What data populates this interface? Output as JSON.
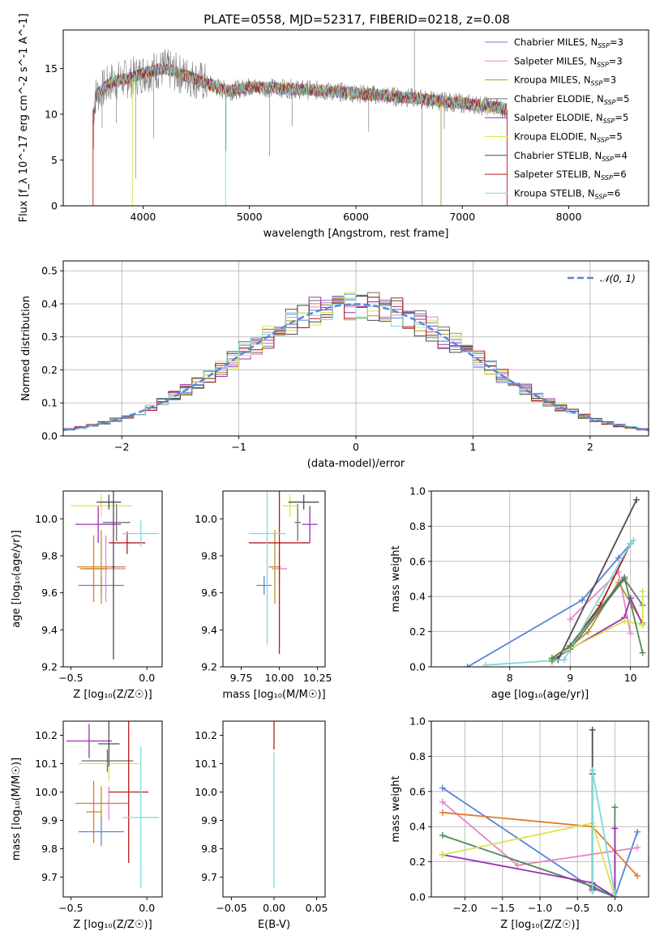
{
  "figure_title": "PLATE=0558, MJD=52317, FIBERID=0218, z=0.08",
  "colors": {
    "Chabrier MILES": "#5b84d6",
    "Salpeter MILES": "#e487c2",
    "Kroupa MILES": "#b8952c",
    "Chabrier ELODIE": "#6e6e6e",
    "Salpeter ELODIE": "#9b2fb3",
    "Kroupa ELODIE": "#d9e34e",
    "Chabrier STELIB": "#4d4d4d",
    "Salpeter STELIB": "#b51c1c",
    "Kroupa STELIB": "#7fd8d8",
    "panel_extra": [
      "#e07b2a",
      "#4f8a55"
    ]
  },
  "chart_data": [
    {
      "id": "spectrum",
      "type": "line",
      "xlabel": "wavelength [Angstrom, rest frame]",
      "ylabel": "Flux [f_λ 10^-17 erg cm^-2 s^-1 A^-1]",
      "xlim": [
        3250,
        8750
      ],
      "ylim": [
        0,
        19.2
      ],
      "xticks": [
        "4000",
        "5000",
        "6000",
        "7000",
        "8000"
      ],
      "yticks": [
        "0",
        "5",
        "10",
        "15"
      ],
      "grid": false,
      "legend_position": "top-right",
      "legend": [
        {
          "base": "Chabrier MILES, N",
          "suffix": "=3"
        },
        {
          "base": "Salpeter MILES, N",
          "suffix": "=3"
        },
        {
          "base": "Kroupa MILES, N",
          "suffix": "=3"
        },
        {
          "base": "Chabrier ELODIE, N",
          "suffix": "=5"
        },
        {
          "base": "Salpeter ELODIE, N",
          "suffix": "=5"
        },
        {
          "base": "Kroupa ELODIE, N",
          "suffix": "=5"
        },
        {
          "base": "Chabrier STELIB, N",
          "suffix": "=4"
        },
        {
          "base": "Salpeter STELIB, N",
          "suffix": "=6"
        },
        {
          "base": "Kroupa STELIB, N",
          "suffix": "=6"
        }
      ],
      "legend_sub": "SSP",
      "data_trend": {
        "x": [
          3550,
          3700,
          3900,
          4000,
          4200,
          4500,
          4800,
          5000,
          5500,
          6000,
          6500,
          7000,
          7300,
          7420
        ],
        "y": [
          12.0,
          13.5,
          14.0,
          14.5,
          15.0,
          13.8,
          12.5,
          13.0,
          12.7,
          12.3,
          11.8,
          11.2,
          10.8,
          10.5
        ]
      }
    },
    {
      "id": "residual_histogram",
      "type": "line",
      "xlabel": "(data-model)/error",
      "ylabel": "Normed distribution",
      "xlim": [
        -2.5,
        2.5
      ],
      "ylim": [
        0,
        0.53
      ],
      "xticks": [
        "−2",
        "−1",
        "0",
        "1",
        "2"
      ],
      "yticks": [
        "0.0",
        "0.1",
        "0.2",
        "0.3",
        "0.4",
        "0.5"
      ],
      "grid": true,
      "legend": [
        "𝒩(0, 1)"
      ],
      "reference_curve": "normal pdf, mean 0, sigma 1",
      "bin_width": 0.1
    },
    {
      "id": "age_vs_Z",
      "type": "scatter",
      "xlabel": "Z [log₁₀(Z/Z☉)]",
      "ylabel": "age  [log₁₀(age/yr)]",
      "xlim": [
        -0.55,
        0.1
      ],
      "ylim": [
        9.2,
        10.15
      ],
      "xticks": [
        "−0.5",
        "0.0"
      ],
      "yticks": [
        "9.2",
        "9.4",
        "9.6",
        "9.8",
        "10.0"
      ],
      "points": [
        {
          "c": "Chabrier MILES",
          "x": -0.3,
          "xe": 0.15,
          "y": 9.64,
          "ye": 0.05
        },
        {
          "c": "Salpeter MILES",
          "x": -0.27,
          "xe": 0.13,
          "y": 9.73,
          "ye": 0.18
        },
        {
          "c": "Kroupa MILES",
          "x": -0.3,
          "xe": 0.16,
          "y": 9.74,
          "ye": 0.2
        },
        {
          "c": "Chabrier ELODIE",
          "x": -0.2,
          "xe": 0.09,
          "y": 9.98,
          "ye": 0.1
        },
        {
          "c": "Salpeter ELODIE",
          "x": -0.32,
          "xe": 0.15,
          "y": 9.97,
          "ye": 0.1
        },
        {
          "c": "Kroupa ELODIE",
          "x": -0.3,
          "xe": 0.2,
          "y": 10.07,
          "ye": 0.06
        },
        {
          "c": "Chabrier STELIB",
          "x": -0.25,
          "xe": 0.08,
          "y": 10.09,
          "ye": 0.04
        },
        {
          "c": "Salpeter STELIB",
          "x": -0.13,
          "xe": 0.12,
          "y": 9.87,
          "ye": 0.06
        },
        {
          "c": "Kroupa STELIB",
          "x": -0.04,
          "xe": 0.12,
          "y": 9.92,
          "ye": 0.07
        },
        {
          "c": "Chabrier STELIB",
          "x": -0.22,
          "xe": 0.01,
          "y": 9.74,
          "ye": 0.5
        },
        {
          "c": "panel_extra.0",
          "x": -0.35,
          "xe": 0.09,
          "y": 9.73,
          "ye": 0.18
        }
      ]
    },
    {
      "id": "age_vs_mass",
      "type": "scatter",
      "xlabel": "mass [log₁₀(M/M☉)]",
      "ylabel": "",
      "xlim": [
        9.63,
        10.3
      ],
      "ylim": [
        9.2,
        10.15
      ],
      "xticks": [
        "9.75",
        "10.00",
        "10.25"
      ],
      "yticks": [
        "9.2",
        "9.4",
        "9.6",
        "9.8",
        "10.0"
      ],
      "points": [
        {
          "c": "Chabrier MILES",
          "x": 9.9,
          "xe": 0.05,
          "y": 9.64,
          "ye": 0.05
        },
        {
          "c": "Salpeter MILES",
          "x": 10.0,
          "xe": 0.05,
          "y": 9.73,
          "ye": 0.08
        },
        {
          "c": "Kroupa MILES",
          "x": 9.97,
          "xe": 0.04,
          "y": 9.74,
          "ye": 0.2
        },
        {
          "c": "Chabrier ELODIE",
          "x": 10.12,
          "xe": 0.02,
          "y": 9.98,
          "ye": 0.1
        },
        {
          "c": "Salpeter ELODIE",
          "x": 10.2,
          "xe": 0.05,
          "y": 9.97,
          "ye": 0.1
        },
        {
          "c": "Kroupa ELODIE",
          "x": 10.07,
          "xe": 0.05,
          "y": 10.07,
          "ye": 0.06
        },
        {
          "c": "Chabrier STELIB",
          "x": 10.16,
          "xe": 0.1,
          "y": 10.09,
          "ye": 0.04
        },
        {
          "c": "Salpeter STELIB",
          "x": 10.0,
          "xe": 0.2,
          "y": 9.87,
          "ye": 0.6
        },
        {
          "c": "Kroupa STELIB",
          "x": 9.92,
          "xe": 0.12,
          "y": 9.92,
          "ye": 0.6
        }
      ]
    },
    {
      "id": "massweight_vs_age",
      "type": "line",
      "xlabel": "age  [log₁₀(age/yr)]",
      "ylabel": "mass weight",
      "xlim": [
        6.7,
        10.3
      ],
      "ylim": [
        0,
        1
      ],
      "xticks": [
        "8",
        "9",
        "10"
      ],
      "yticks": [
        "0.0",
        "0.2",
        "0.4",
        "0.6",
        "0.8",
        "1.0"
      ],
      "grid": true,
      "series": [
        {
          "c": "Chabrier MILES",
          "x": [
            7.3,
            9.2,
            9.8,
            10.0
          ],
          "y": [
            0.0,
            0.38,
            0.62,
            0.7
          ]
        },
        {
          "c": "Salpeter MILES",
          "x": [
            9.0,
            9.8,
            10.0
          ],
          "y": [
            0.27,
            0.54,
            0.19
          ]
        },
        {
          "c": "Kroupa MILES",
          "x": [
            8.7,
            9.3,
            9.8,
            10.2
          ],
          "y": [
            0.03,
            0.2,
            0.48,
            0.25
          ]
        },
        {
          "c": "Chabrier ELODIE",
          "x": [
            8.7,
            9.0,
            9.9,
            10.2
          ],
          "y": [
            0.04,
            0.1,
            0.5,
            0.35
          ]
        },
        {
          "c": "Salpeter ELODIE",
          "x": [
            8.8,
            9.9,
            10.0,
            10.2
          ],
          "y": [
            0.06,
            0.28,
            0.39,
            0.24
          ]
        },
        {
          "c": "Kroupa ELODIE",
          "x": [
            8.7,
            9.9,
            10.2,
            10.2
          ],
          "y": [
            0.05,
            0.26,
            0.24,
            0.43
          ]
        },
        {
          "c": "Chabrier STELIB",
          "x": [
            8.8,
            10.1
          ],
          "y": [
            0.04,
            0.95
          ]
        },
        {
          "c": "Salpeter STELIB",
          "x": [
            9.0,
            9.5,
            10.0
          ],
          "y": [
            0.12,
            0.35,
            0.7
          ]
        },
        {
          "c": "Kroupa STELIB",
          "x": [
            7.6,
            8.9,
            10.0,
            10.05
          ],
          "y": [
            0.01,
            0.04,
            0.7,
            0.72
          ]
        },
        {
          "c": "panel_extra.1",
          "x": [
            8.7,
            9.0,
            9.9,
            10.2
          ],
          "y": [
            0.05,
            0.12,
            0.51,
            0.08
          ]
        }
      ]
    },
    {
      "id": "mass_vs_Z",
      "type": "scatter",
      "xlabel": "Z [log₁₀(Z/Z☉)]",
      "ylabel": "mass [log₁₀(M/M☉)]",
      "xlim": [
        -0.55,
        0.1
      ],
      "ylim": [
        9.63,
        10.25
      ],
      "xticks": [
        "−0.5",
        "0.0"
      ],
      "yticks": [
        "9.7",
        "9.8",
        "9.9",
        "10.0",
        "10.1",
        "10.2"
      ],
      "points": [
        {
          "c": "Chabrier MILES",
          "x": -0.3,
          "xe": 0.15,
          "y": 9.86,
          "ye": 0.05
        },
        {
          "c": "Salpeter MILES",
          "x": -0.25,
          "xe": 0.13,
          "y": 9.96,
          "ye": 0.06
        },
        {
          "c": "Kroupa MILES",
          "x": -0.3,
          "xe": 0.17,
          "y": 9.96,
          "ye": 0.06
        },
        {
          "c": "Chabrier ELODIE",
          "x": -0.26,
          "xe": 0.17,
          "y": 10.11,
          "ye": 0.04
        },
        {
          "c": "Salpeter ELODIE",
          "x": -0.38,
          "xe": 0.15,
          "y": 10.18,
          "ye": 0.06
        },
        {
          "c": "Kroupa ELODIE",
          "x": -0.25,
          "xe": 0.2,
          "y": 10.1,
          "ye": 0.06
        },
        {
          "c": "Chabrier STELIB",
          "x": -0.25,
          "xe": 0.07,
          "y": 10.17,
          "ye": 0.08
        },
        {
          "c": "Salpeter STELIB",
          "x": -0.12,
          "xe": 0.13,
          "y": 10.0,
          "ye": 0.25
        },
        {
          "c": "Kroupa STELIB",
          "x": -0.04,
          "xe": 0.12,
          "y": 9.91,
          "ye": 0.25
        },
        {
          "c": "panel_extra.0",
          "x": -0.35,
          "xe": 0.05,
          "y": 9.93,
          "ye": 0.11
        }
      ]
    },
    {
      "id": "mass_vs_ebv",
      "type": "scatter",
      "xlabel": "E(B-V)",
      "ylabel": "",
      "xlim": [
        -0.06,
        0.06
      ],
      "ylim": [
        9.63,
        10.25
      ],
      "xticks": [
        "−0.05",
        "0.00",
        "0.05"
      ],
      "yticks": [
        "9.7",
        "9.8",
        "9.9",
        "10.0",
        "10.1",
        "10.2"
      ],
      "points": [
        {
          "c": "Salpeter STELIB",
          "x": 0.0,
          "xe": 0.0,
          "y": 10.2,
          "ye": 0.05
        },
        {
          "c": "Kroupa STELIB",
          "x": 0.0,
          "xe": 0.0,
          "y": 9.9,
          "ye": 0.24
        }
      ]
    },
    {
      "id": "massweight_vs_Z",
      "type": "line",
      "xlabel": "Z [log₁₀(Z/Z☉)]",
      "ylabel": "mass weight",
      "xlim": [
        -2.45,
        0.45
      ],
      "ylim": [
        0,
        1
      ],
      "xticks": [
        "−2.0",
        "−1.5",
        "−1.0",
        "−0.5",
        "0.0"
      ],
      "yticks": [
        "0.0",
        "0.2",
        "0.4",
        "0.6",
        "0.8",
        "1.0"
      ],
      "grid": true,
      "series": [
        {
          "c": "Chabrier MILES",
          "x": [
            -2.3,
            -0.3,
            0.0,
            0.3
          ],
          "y": [
            0.62,
            0.05,
            0.0,
            0.37
          ]
        },
        {
          "c": "Salpeter MILES",
          "x": [
            -2.3,
            -1.3,
            0.3
          ],
          "y": [
            0.54,
            0.18,
            0.28
          ]
        },
        {
          "c": "panel_extra.0",
          "x": [
            -2.3,
            -0.3,
            0.3
          ],
          "y": [
            0.48,
            0.4,
            0.12
          ]
        },
        {
          "c": "panel_extra.1",
          "x": [
            -2.3,
            -0.3,
            0.0,
            0.0
          ],
          "y": [
            0.35,
            0.06,
            0.0,
            0.51
          ]
        },
        {
          "c": "Salpeter ELODIE",
          "x": [
            -2.3,
            -0.3,
            0.0,
            0.0
          ],
          "y": [
            0.24,
            0.08,
            0.0,
            0.39
          ]
        },
        {
          "c": "Kroupa ELODIE",
          "x": [
            -2.3,
            -0.3,
            0.0
          ],
          "y": [
            0.24,
            0.42,
            0.0
          ]
        },
        {
          "c": "Chabrier STELIB",
          "x": [
            -0.3,
            -0.3
          ],
          "y": [
            0.04,
            0.95
          ]
        },
        {
          "c": "Salpeter STELIB",
          "x": [
            -0.3,
            -0.3
          ],
          "y": [
            0.04,
            0.7
          ]
        },
        {
          "c": "Kroupa STELIB",
          "x": [
            -0.3,
            -0.3,
            0.0
          ],
          "y": [
            0.03,
            0.72,
            0.02
          ]
        }
      ]
    }
  ]
}
